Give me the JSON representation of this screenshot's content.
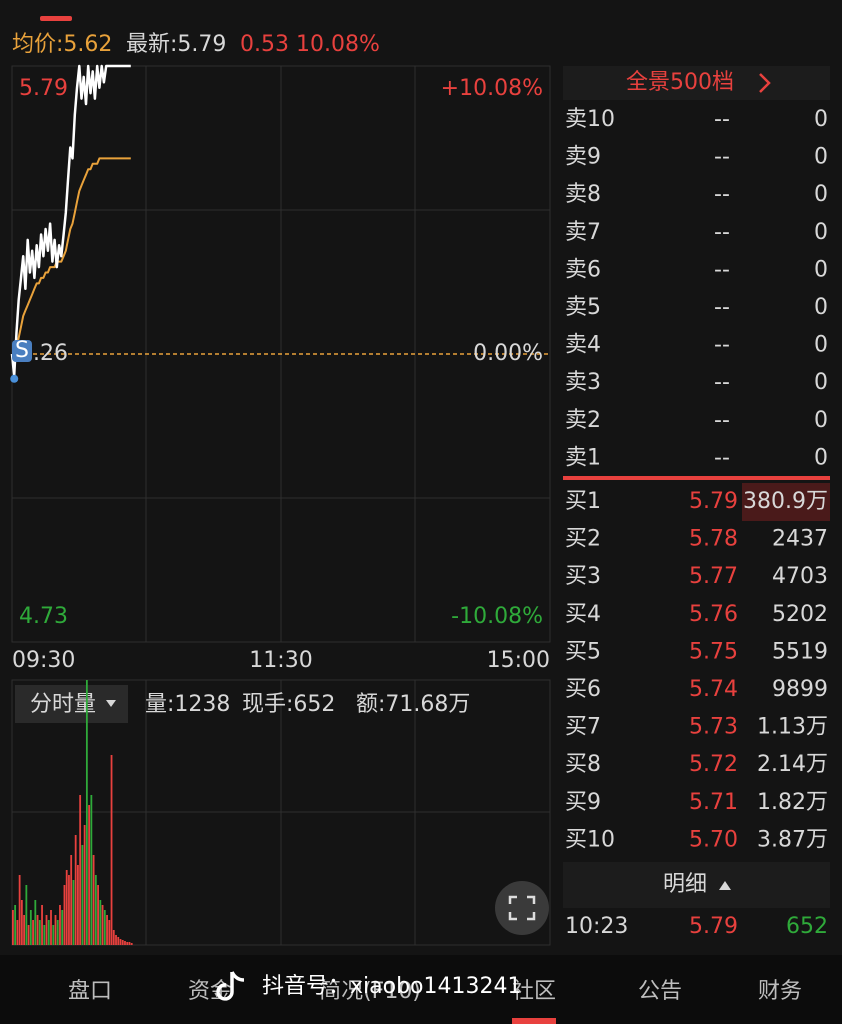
{
  "header": {
    "avg": "均价:5.62",
    "latest": "最新:5.79",
    "change": "0.53",
    "change_pct": "10.08%"
  },
  "price_chart": {
    "ylim": [
      4.73,
      5.79
    ],
    "yticks": [
      5.79,
      5.26,
      4.73
    ],
    "pct_labels": [
      "+10.08%",
      "0.00%",
      "-10.08%"
    ],
    "badge": "S",
    "times": [
      "09:30",
      "11:30",
      "15:00"
    ],
    "prices": [
      5.26,
      5.22,
      5.3,
      5.36,
      5.4,
      5.44,
      5.38,
      5.47,
      5.41,
      5.45,
      5.4,
      5.46,
      5.42,
      5.48,
      5.44,
      5.49,
      5.45,
      5.5,
      5.43,
      5.47,
      5.42,
      5.46,
      5.44,
      5.48,
      5.52,
      5.58,
      5.64,
      5.62,
      5.7,
      5.75,
      5.79,
      5.73,
      5.77,
      5.72,
      5.79,
      5.74,
      5.78,
      5.73,
      5.79,
      5.75,
      5.79,
      5.76,
      5.79,
      5.79,
      5.79,
      5.79,
      5.79,
      5.79,
      5.79,
      5.79,
      5.79,
      5.79,
      5.79,
      5.79
    ],
    "avg_prices": [
      5.26,
      5.25,
      5.27,
      5.29,
      5.31,
      5.33,
      5.34,
      5.35,
      5.36,
      5.37,
      5.38,
      5.39,
      5.39,
      5.4,
      5.4,
      5.41,
      5.41,
      5.42,
      5.42,
      5.42,
      5.43,
      5.43,
      5.43,
      5.44,
      5.45,
      5.47,
      5.49,
      5.5,
      5.52,
      5.54,
      5.56,
      5.57,
      5.58,
      5.59,
      5.6,
      5.6,
      5.61,
      5.61,
      5.61,
      5.62,
      5.62,
      5.62,
      5.62,
      5.62,
      5.62,
      5.62,
      5.62,
      5.62,
      5.62,
      5.62,
      5.62,
      5.62,
      5.62,
      5.62
    ]
  },
  "volume_panel": {
    "selector": "分时量",
    "volume": "量:1238",
    "current_hand": "现手:652",
    "amount": "额:71.68万",
    "volumes": [
      35,
      40,
      25,
      70,
      45,
      30,
      60,
      20,
      35,
      25,
      45,
      30,
      25,
      40,
      20,
      30,
      25,
      35,
      20,
      30,
      25,
      40,
      35,
      60,
      75,
      70,
      90,
      65,
      110,
      80,
      150,
      100,
      120,
      265,
      140,
      150,
      90,
      70,
      60,
      45,
      40,
      35,
      30,
      25,
      190,
      15,
      10,
      8,
      6,
      5,
      4,
      3,
      3,
      2
    ]
  },
  "order_book": {
    "title": "全景500档",
    "asks": [
      {
        "label": "卖10",
        "price": "--",
        "volume": "0"
      },
      {
        "label": "卖9",
        "price": "--",
        "volume": "0"
      },
      {
        "label": "卖8",
        "price": "--",
        "volume": "0"
      },
      {
        "label": "卖7",
        "price": "--",
        "volume": "0"
      },
      {
        "label": "卖6",
        "price": "--",
        "volume": "0"
      },
      {
        "label": "卖5",
        "price": "--",
        "volume": "0"
      },
      {
        "label": "卖4",
        "price": "--",
        "volume": "0"
      },
      {
        "label": "卖3",
        "price": "--",
        "volume": "0"
      },
      {
        "label": "卖2",
        "price": "--",
        "volume": "0"
      },
      {
        "label": "卖1",
        "price": "--",
        "volume": "0"
      }
    ],
    "bids": [
      {
        "label": "买1",
        "price": "5.79",
        "volume": "380.9万"
      },
      {
        "label": "买2",
        "price": "5.78",
        "volume": "2437"
      },
      {
        "label": "买3",
        "price": "5.77",
        "volume": "4703"
      },
      {
        "label": "买4",
        "price": "5.76",
        "volume": "5202"
      },
      {
        "label": "买5",
        "price": "5.75",
        "volume": "5519"
      },
      {
        "label": "买6",
        "price": "5.74",
        "volume": "9899"
      },
      {
        "label": "买7",
        "price": "5.73",
        "volume": "1.13万"
      },
      {
        "label": "买8",
        "price": "5.72",
        "volume": "2.14万"
      },
      {
        "label": "买9",
        "price": "5.71",
        "volume": "1.82万"
      },
      {
        "label": "买10",
        "price": "5.70",
        "volume": "3.87万"
      }
    ]
  },
  "trades": {
    "title": "明细",
    "rows": [
      {
        "time": "10:23",
        "price": "5.79",
        "volume": "652"
      }
    ]
  },
  "tabs": [
    "盘口",
    "资金",
    "简况(F10)",
    "社区",
    "公告",
    "财务"
  ],
  "watermark": "抖音号：xiaobo1413241"
}
